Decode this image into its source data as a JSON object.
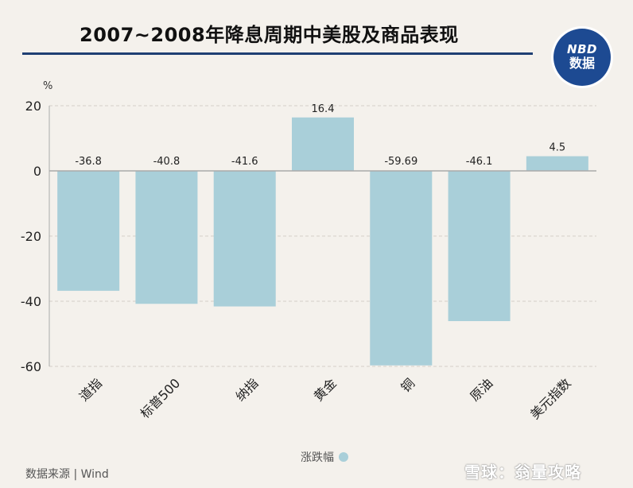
{
  "title": "2007~2008年降息周期中美股及商品表现",
  "logo": {
    "line1": "NBD",
    "line2": "数据"
  },
  "chart_data": {
    "type": "bar",
    "categories": [
      "道指",
      "标普500",
      "纳指",
      "黄金",
      "铜",
      "原油",
      "美元指数"
    ],
    "series": [
      {
        "name": "涨跌幅",
        "values": [
          -36.8,
          -40.8,
          -41.6,
          16.4,
          -59.69,
          -46.1,
          4.5
        ]
      }
    ],
    "data_labels": [
      "-36.8",
      "-40.8",
      "-41.6",
      "16.4",
      "-59.69",
      "-46.1",
      "4.5"
    ],
    "ylabel": "%",
    "ylim": [
      -60,
      20
    ],
    "yticks": [
      20,
      0,
      -20,
      -40,
      -60
    ],
    "grid": true,
    "legend_position": "bottom",
    "bar_color": "#a9cfd9"
  },
  "legend_label": "涨跌幅",
  "source": "数据来源 | Wind",
  "watermark": "雪球：翁量攻略"
}
